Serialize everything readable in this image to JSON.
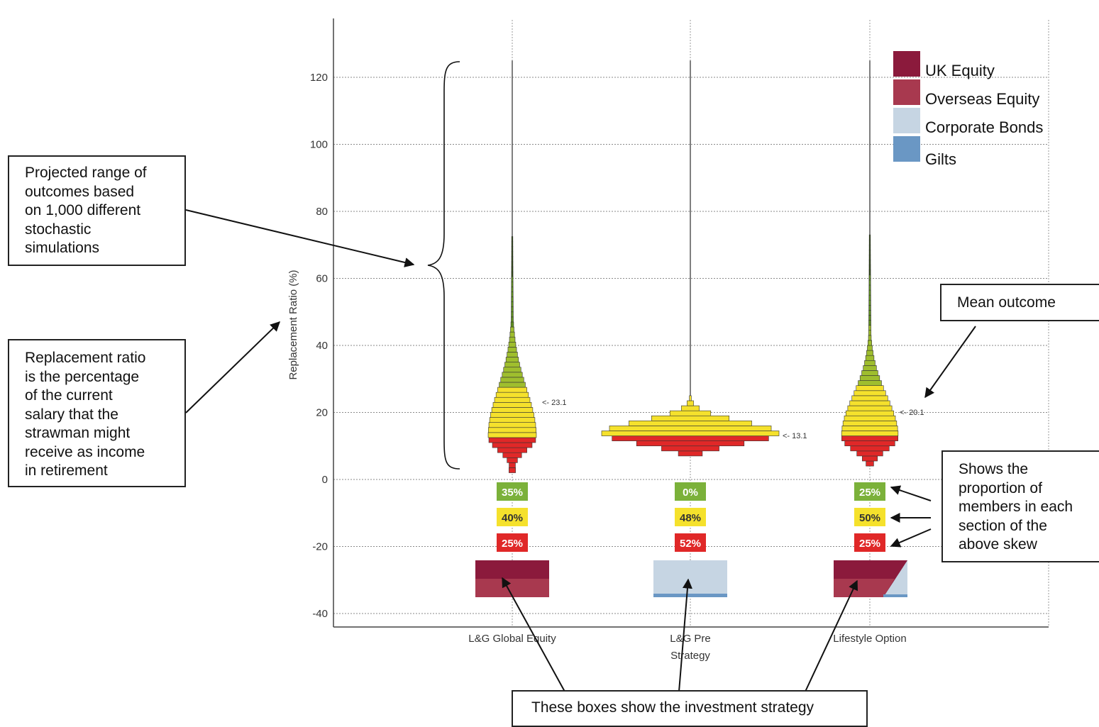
{
  "chart_data": {
    "type": "bar",
    "title": "",
    "ylabel": "Replacement Ratio (%)",
    "ylim": [
      -42,
      135
    ],
    "yticks": [
      120,
      100,
      80,
      60,
      40,
      20,
      0,
      -20,
      -40
    ],
    "grid": true,
    "legend_position": "top-right",
    "categories": [
      {
        "label_lines": [
          "L&G Global Equity"
        ],
        "mean": 23.1,
        "mean_label": "<- 23.1",
        "distribution_min": 2,
        "distribution_max": 125,
        "proportions": {
          "green": "35%",
          "yellow": "40%",
          "red": "25%"
        },
        "strategy": "equity"
      },
      {
        "label_lines": [
          "L&G Pre",
          "Strategy"
        ],
        "mean": 13.1,
        "mean_label": "<- 13.1",
        "distribution_min": 7,
        "distribution_max": 125,
        "proportions": {
          "green": "0%",
          "yellow": "48%",
          "red": "52%"
        },
        "strategy": "bonds"
      },
      {
        "label_lines": [
          "Lifestyle Option"
        ],
        "mean": 20.1,
        "mean_label": "<- 20.1",
        "distribution_min": 4,
        "distribution_max": 125,
        "proportions": {
          "green": "25%",
          "yellow": "50%",
          "red": "25%"
        },
        "strategy": "lifestyle"
      }
    ],
    "legend": [
      {
        "name": "UK Equity",
        "color": "#8b1a3c"
      },
      {
        "name": "Overseas Equity",
        "color": "#a8394f"
      },
      {
        "name": "Corporate Bonds",
        "color": "#c6d5e3"
      },
      {
        "name": "Gilts",
        "color": "#6a97c4"
      }
    ],
    "band_colors": {
      "green": "#7bb13a",
      "yellow": "#f5e12c",
      "red": "#e02828"
    }
  },
  "annotations": {
    "range_box": [
      "Projected range of",
      "outcomes based",
      "on 1,000 different",
      "stochastic",
      "simulations"
    ],
    "ratio_box": [
      "Replacement ratio",
      "is the percentage",
      "of the current",
      "salary that the",
      "strawman might",
      "receive as income",
      "in retirement"
    ],
    "mean_box": [
      "Mean outcome"
    ],
    "proportion_box": [
      "Shows the",
      "proportion of",
      "members in each",
      "section of the",
      "above skew"
    ],
    "strategy_box": [
      "These boxes show the investment strategy"
    ]
  }
}
